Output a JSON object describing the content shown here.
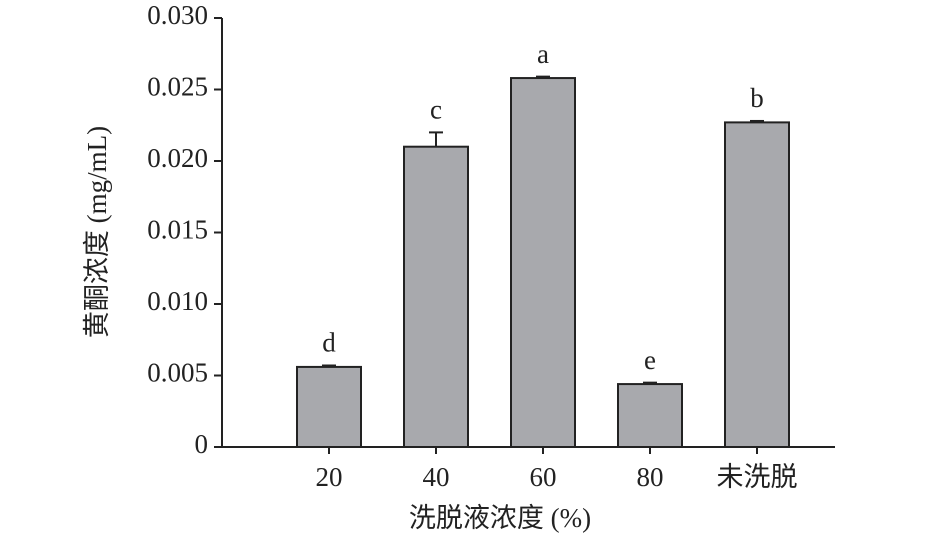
{
  "chart_data": {
    "type": "bar",
    "x_label": "洗脱液浓度 (%)",
    "y_label": "黄酮浓度 (mg/mL)",
    "categories": [
      "20",
      "40",
      "60",
      "80",
      "未洗脱"
    ],
    "values": [
      0.0056,
      0.021,
      0.0258,
      0.0044,
      0.0227
    ],
    "errors": [
      0.0001,
      0.001,
      0.0001,
      0.0001,
      0.0001
    ],
    "annotations": [
      "d",
      "c",
      "a",
      "e",
      "b"
    ],
    "color": "#a8a9ad",
    "ylim": [
      0,
      0.03
    ],
    "yticks": [
      0,
      0.005,
      {
        "value": 0.01,
        "label": "0.010"
      },
      0.015,
      {
        "value": 0.02,
        "label": "0.020"
      },
      0.025,
      {
        "value": 0.03,
        "label": "0.030"
      }
    ]
  }
}
